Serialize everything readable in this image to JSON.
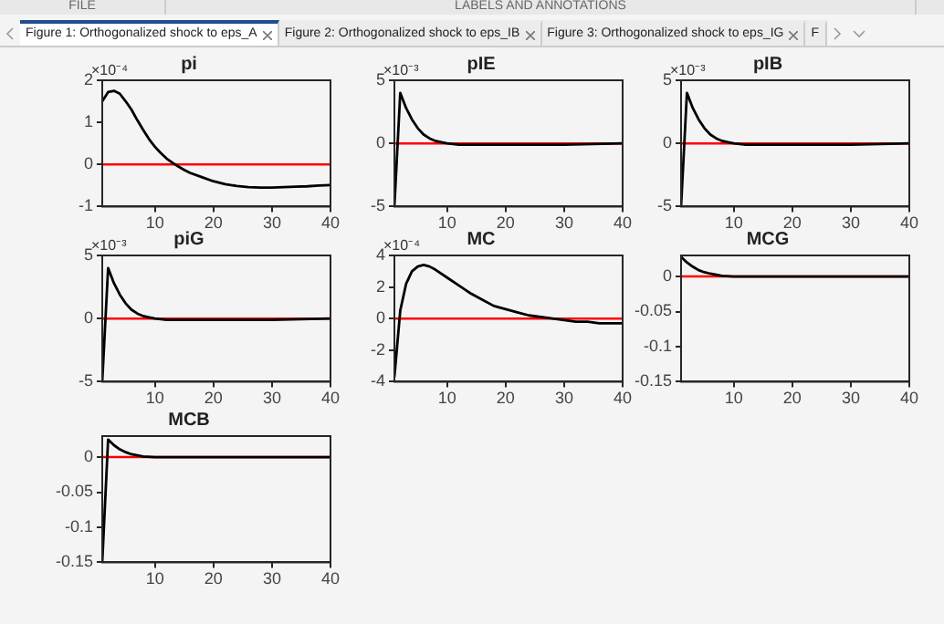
{
  "chart_data": [
    {
      "type": "other",
      "annotations": [
        "FILE",
        "LABELS AND ANNOTATIONS",
        "Figure 1: Orthogonalized shock to eps_A",
        "Figure 2: Orthogonalized shock to eps_IB",
        "Figure 3: Orthogonalized shock to eps_IG",
        "F"
      ]
    },
    {
      "type": "line",
      "title": "pi",
      "annotations": [
        "×10⁻⁴"
      ],
      "x": [
        1,
        2,
        3,
        4,
        5,
        6,
        7,
        8,
        9,
        10,
        11,
        12,
        13,
        14,
        15,
        16,
        18,
        20,
        22,
        24,
        26,
        28,
        30,
        32,
        34,
        36,
        38,
        40
      ],
      "series": [
        {
          "color": "#000000",
          "values": [
            1.5,
            1.72,
            1.75,
            1.68,
            1.5,
            1.3,
            1.05,
            0.82,
            0.6,
            0.42,
            0.27,
            0.14,
            0.04,
            -0.05,
            -0.13,
            -0.2,
            -0.3,
            -0.4,
            -0.47,
            -0.51,
            -0.54,
            -0.55,
            -0.55,
            -0.54,
            -0.53,
            -0.52,
            -0.5,
            -0.49
          ]
        }
      ],
      "xlim": [
        1,
        40
      ],
      "xticks": [
        10,
        20,
        30,
        40
      ],
      "ylim": [
        -1,
        2
      ],
      "yticks": [
        -1,
        0,
        1,
        2
      ],
      "ref_lines": [
        {
          "axis": "y",
          "value": 0,
          "color": "#ff0000"
        }
      ]
    },
    {
      "type": "line",
      "title": "pIE",
      "annotations": [
        "×10⁻³"
      ],
      "x": [
        1,
        2,
        3,
        4,
        5,
        6,
        7,
        8,
        9,
        10,
        12,
        15,
        20,
        30,
        40
      ],
      "series": [
        {
          "color": "#000000",
          "values": [
            -5,
            4,
            2.8,
            1.9,
            1.2,
            0.7,
            0.4,
            0.2,
            0.1,
            0,
            -0.1,
            -0.1,
            -0.1,
            -0.1,
            0
          ]
        }
      ],
      "xlim": [
        1,
        40
      ],
      "xticks": [
        10,
        20,
        30,
        40
      ],
      "ylim": [
        -5,
        5
      ],
      "yticks": [
        -5,
        0,
        5
      ],
      "ref_lines": [
        {
          "axis": "y",
          "value": 0,
          "color": "#ff0000"
        }
      ]
    },
    {
      "type": "line",
      "title": "pIB",
      "annotations": [
        "×10⁻³"
      ],
      "x": [
        1,
        2,
        3,
        4,
        5,
        6,
        7,
        8,
        9,
        10,
        12,
        15,
        20,
        30,
        40
      ],
      "series": [
        {
          "color": "#000000",
          "values": [
            -5,
            4,
            2.8,
            1.9,
            1.2,
            0.7,
            0.4,
            0.2,
            0.1,
            0,
            -0.1,
            -0.1,
            -0.1,
            -0.1,
            0
          ]
        }
      ],
      "xlim": [
        1,
        40
      ],
      "xticks": [
        10,
        20,
        30,
        40
      ],
      "ylim": [
        -5,
        5
      ],
      "yticks": [
        -5,
        0,
        5
      ],
      "ref_lines": [
        {
          "axis": "y",
          "value": 0,
          "color": "#ff0000"
        }
      ]
    },
    {
      "type": "line",
      "title": "piG",
      "annotations": [
        "×10⁻³"
      ],
      "x": [
        1,
        2,
        3,
        4,
        5,
        6,
        7,
        8,
        9,
        10,
        12,
        15,
        20,
        30,
        40
      ],
      "series": [
        {
          "color": "#000000",
          "values": [
            -5,
            4,
            2.8,
            1.9,
            1.2,
            0.7,
            0.4,
            0.2,
            0.1,
            0,
            -0.1,
            -0.1,
            -0.1,
            -0.1,
            0
          ]
        }
      ],
      "xlim": [
        1,
        40
      ],
      "xticks": [
        10,
        20,
        30,
        40
      ],
      "ylim": [
        -5,
        5
      ],
      "yticks": [
        -5,
        0,
        5
      ],
      "ref_lines": [
        {
          "axis": "y",
          "value": 0,
          "color": "#ff0000"
        }
      ]
    },
    {
      "type": "line",
      "title": "MC",
      "annotations": [
        "×10⁻⁴"
      ],
      "x": [
        1,
        2,
        3,
        4,
        5,
        6,
        7,
        8,
        10,
        12,
        14,
        16,
        18,
        20,
        22,
        24,
        26,
        28,
        30,
        32,
        34,
        36,
        38,
        40
      ],
      "series": [
        {
          "color": "#000000",
          "values": [
            -3.7,
            0.5,
            2.2,
            3.0,
            3.3,
            3.4,
            3.3,
            3.1,
            2.6,
            2.1,
            1.6,
            1.2,
            0.8,
            0.6,
            0.4,
            0.2,
            0.1,
            0,
            -0.1,
            -0.2,
            -0.2,
            -0.3,
            -0.3,
            -0.3
          ]
        }
      ],
      "xlim": [
        1,
        40
      ],
      "xticks": [
        10,
        20,
        30,
        40
      ],
      "ylim": [
        -4,
        4
      ],
      "yticks": [
        -4,
        -2,
        0,
        2,
        4
      ],
      "ref_lines": [
        {
          "axis": "y",
          "value": 0,
          "color": "#ff0000"
        }
      ]
    },
    {
      "type": "line",
      "title": "MCG",
      "x": [
        1,
        2,
        3,
        4,
        5,
        6,
        8,
        10,
        20,
        40
      ],
      "series": [
        {
          "color": "#000000",
          "values": [
            0.028,
            0.02,
            0.014,
            0.009,
            0.006,
            0.004,
            0.001,
            0,
            0,
            0
          ]
        }
      ],
      "xlim": [
        1,
        40
      ],
      "xticks": [
        10,
        20,
        30,
        40
      ],
      "ylim": [
        -0.15,
        0.03
      ],
      "yticks": [
        -0.15,
        -0.1,
        -0.05,
        0
      ],
      "ref_lines": [
        {
          "axis": "y",
          "value": 0,
          "color": "#ff0000"
        }
      ]
    },
    {
      "type": "line",
      "title": "MCB",
      "x": [
        1,
        2,
        3,
        4,
        5,
        6,
        8,
        10,
        20,
        40
      ],
      "series": [
        {
          "color": "#000000",
          "values": [
            -0.15,
            0.025,
            0.017,
            0.011,
            0.007,
            0.004,
            0.001,
            0,
            0,
            0
          ]
        }
      ],
      "xlim": [
        1,
        40
      ],
      "xticks": [
        10,
        20,
        30,
        40
      ],
      "ylim": [
        -0.15,
        0.03
      ],
      "yticks": [
        -0.15,
        -0.1,
        -0.05,
        0
      ],
      "ref_lines": [
        {
          "axis": "y",
          "value": 0,
          "color": "#ff0000"
        }
      ]
    }
  ]
}
